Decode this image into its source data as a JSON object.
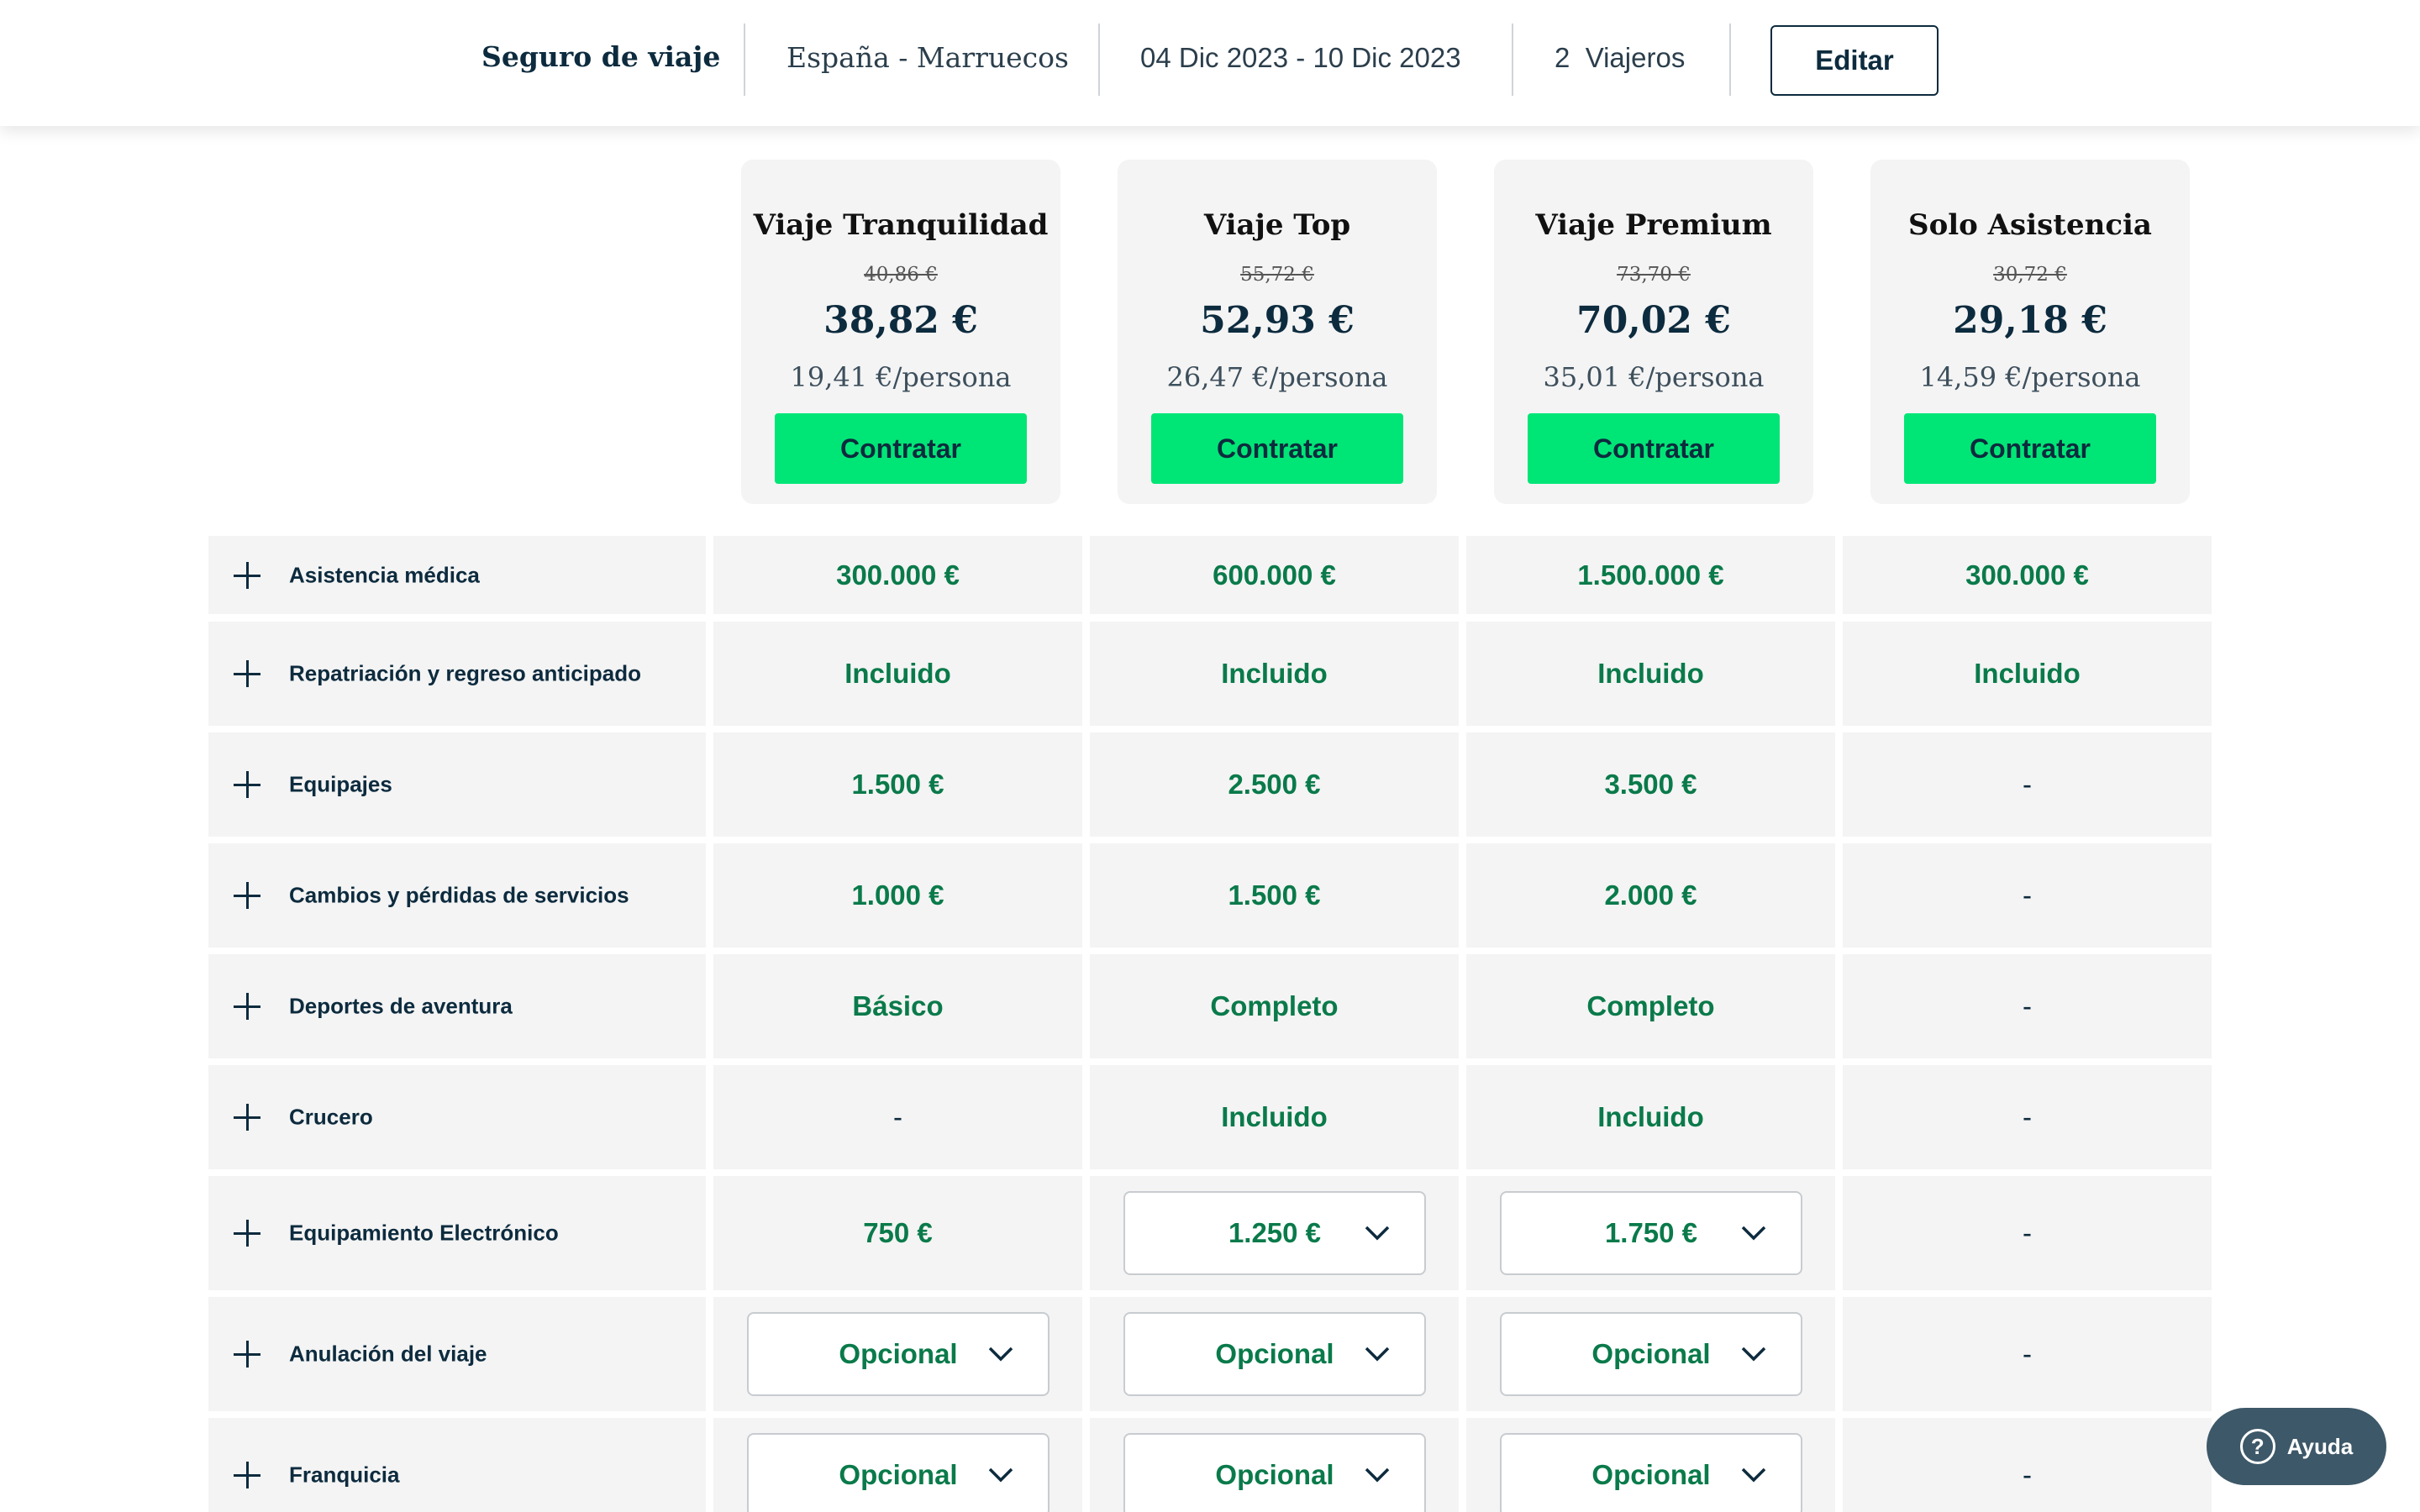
{
  "header": {
    "title": "Seguro de viaje",
    "route": "España - Marruecos",
    "dates": "04 Dic 2023 - 10 Dic 2023",
    "travelers": "2  Viajeros",
    "edit_label": "Editar"
  },
  "plans": [
    {
      "name": "Viaje Tranquilidad",
      "old_price": "40,86 €",
      "price": "38,82 €",
      "per_person": "19,41 €/persona",
      "cta": "Contratar"
    },
    {
      "name": "Viaje Top",
      "old_price": "55,72 €",
      "price": "52,93 €",
      "per_person": "26,47 €/persona",
      "cta": "Contratar"
    },
    {
      "name": "Viaje Premium",
      "old_price": "73,70 €",
      "price": "70,02 €",
      "per_person": "35,01 €/persona",
      "cta": "Contratar"
    },
    {
      "name": "Solo Asistencia",
      "old_price": "30,72 €",
      "price": "29,18 €",
      "per_person": "14,59 €/persona",
      "cta": "Contratar"
    }
  ],
  "coverages": [
    {
      "label": "Asistencia médica",
      "values": [
        "300.000 €",
        "600.000 €",
        "1.500.000 €",
        "300.000 €"
      ]
    },
    {
      "label": "Repatriación y regreso anticipado",
      "values": [
        "Incluido",
        "Incluido",
        "Incluido",
        "Incluido"
      ]
    },
    {
      "label": "Equipajes",
      "values": [
        "1.500 €",
        "2.500 €",
        "3.500 €",
        "-"
      ]
    },
    {
      "label": "Cambios y pérdidas de servicios",
      "values": [
        "1.000 €",
        "1.500 €",
        "2.000 €",
        "-"
      ]
    },
    {
      "label": "Deportes de aventura",
      "values": [
        "Básico",
        "Completo",
        "Completo",
        "-"
      ]
    },
    {
      "label": "Crucero",
      "values": [
        "-",
        "Incluido",
        "Incluido",
        "-"
      ]
    },
    {
      "label": "Equipamiento Electrónico",
      "values": [
        "750 €",
        "1.250 €",
        "1.750 €",
        "-"
      ]
    },
    {
      "label": "Anulación del viaje",
      "values": [
        "Opcional",
        "Opcional",
        "Opcional",
        "-"
      ]
    },
    {
      "label": "Franquicia",
      "values": [
        "Opcional",
        "Opcional",
        "Opcional",
        "-"
      ]
    }
  ],
  "help": {
    "icon": "?",
    "label": "Ayuda"
  },
  "colors": {
    "accent_green": "#00e676",
    "value_green": "#0a7a4a",
    "navy": "#0d2b3e",
    "cell_bg": "#f4f4f4",
    "help_bg": "#3d5868"
  }
}
